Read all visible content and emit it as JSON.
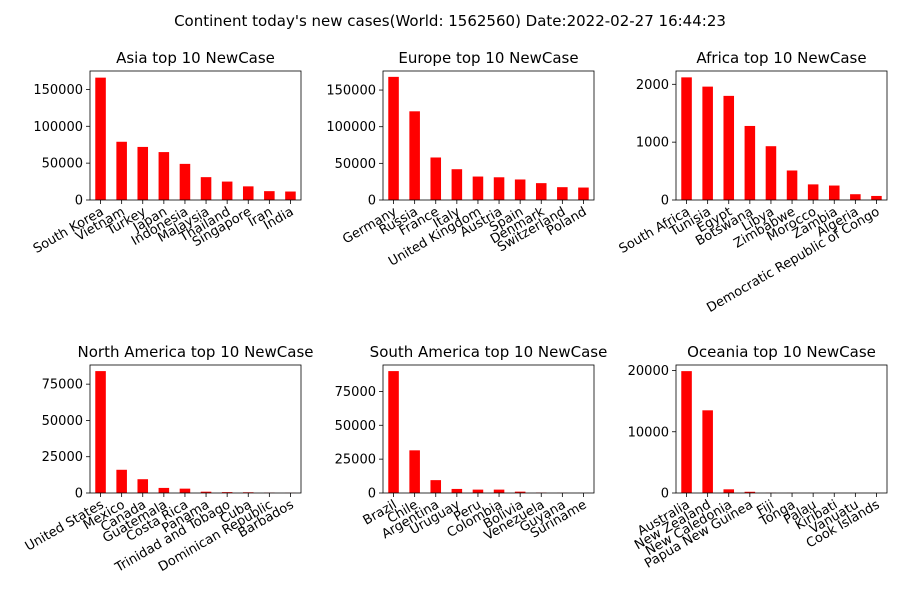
{
  "figure": {
    "suptitle": "Continent today's new cases(World: 1562560) Date:2022-02-27 16:44:23"
  },
  "chart_data": [
    {
      "type": "bar",
      "title": "Asia top 10 NewCase",
      "color": "#ff0000",
      "categories": [
        "South Korea",
        "Vietnam",
        "Turkey",
        "Japan",
        "Indonesia",
        "Malaysia",
        "Thailand",
        "Singapore",
        "Iran",
        "India"
      ],
      "values": [
        166000,
        79000,
        72000,
        65000,
        49000,
        31000,
        25000,
        18500,
        12000,
        11500
      ],
      "ylim": [
        0,
        175000
      ],
      "yticks": [
        0,
        50000,
        100000,
        150000
      ]
    },
    {
      "type": "bar",
      "title": "Europe top 10 NewCase",
      "color": "#ff0000",
      "categories": [
        "Germany",
        "Russia",
        "France",
        "Italy",
        "United Kingdom",
        "Austria",
        "Spain",
        "Denmark",
        "Switzerland",
        "Poland"
      ],
      "values": [
        168000,
        121000,
        58000,
        42000,
        32000,
        31000,
        28000,
        23000,
        17500,
        17000
      ],
      "ylim": [
        0,
        176000
      ],
      "yticks": [
        0,
        50000,
        100000,
        150000
      ]
    },
    {
      "type": "bar",
      "title": "Africa top 10 NewCase",
      "color": "#ff0000",
      "categories": [
        "South Africa",
        "Tunisia",
        "Egypt",
        "Botswana",
        "Libya",
        "Zimbabwe",
        "Morocco",
        "Zambia",
        "Algeria",
        "Democratic Republic of Congo"
      ],
      "values": [
        2120,
        1960,
        1800,
        1280,
        930,
        510,
        270,
        250,
        100,
        70
      ],
      "ylim": [
        0,
        2230
      ],
      "yticks": [
        0,
        1000,
        2000
      ]
    },
    {
      "type": "bar",
      "title": "North America top 10 NewCase",
      "color": "#ff0000",
      "categories": [
        "United States",
        "Mexico",
        "Canada",
        "Guatemala",
        "Costa Rica",
        "Panama",
        "Trinidad and Tobago",
        "Cuba",
        "Dominican Republic",
        "Barbados"
      ],
      "values": [
        84000,
        16000,
        9500,
        3500,
        3000,
        900,
        600,
        500,
        200,
        100
      ],
      "ylim": [
        0,
        88200
      ],
      "yticks": [
        0,
        25000,
        50000,
        75000
      ]
    },
    {
      "type": "bar",
      "title": "South America top 10 NewCase",
      "color": "#ff0000",
      "categories": [
        "Brazil",
        "Chile",
        "Argentina",
        "Uruguay",
        "Peru",
        "Colombia",
        "Bolivia",
        "Venezuela",
        "Guyana",
        "Suriname"
      ],
      "values": [
        90000,
        31500,
        9500,
        3000,
        2500,
        2500,
        1000,
        300,
        100,
        50
      ],
      "ylim": [
        0,
        94500
      ],
      "yticks": [
        0,
        25000,
        50000,
        75000
      ]
    },
    {
      "type": "bar",
      "title": "Oceania top 10 NewCase",
      "color": "#ff0000",
      "categories": [
        "Australia",
        "New Zealand",
        "New Caledonia",
        "Papua New Guinea",
        "Fiji",
        "Tonga",
        "Palau",
        "Kiribati",
        "Vanuatu",
        "Cook Islands"
      ],
      "values": [
        19900,
        13500,
        600,
        200,
        30,
        15,
        10,
        5,
        3,
        2
      ],
      "ylim": [
        0,
        20900
      ],
      "yticks": [
        0,
        10000,
        20000
      ]
    }
  ]
}
